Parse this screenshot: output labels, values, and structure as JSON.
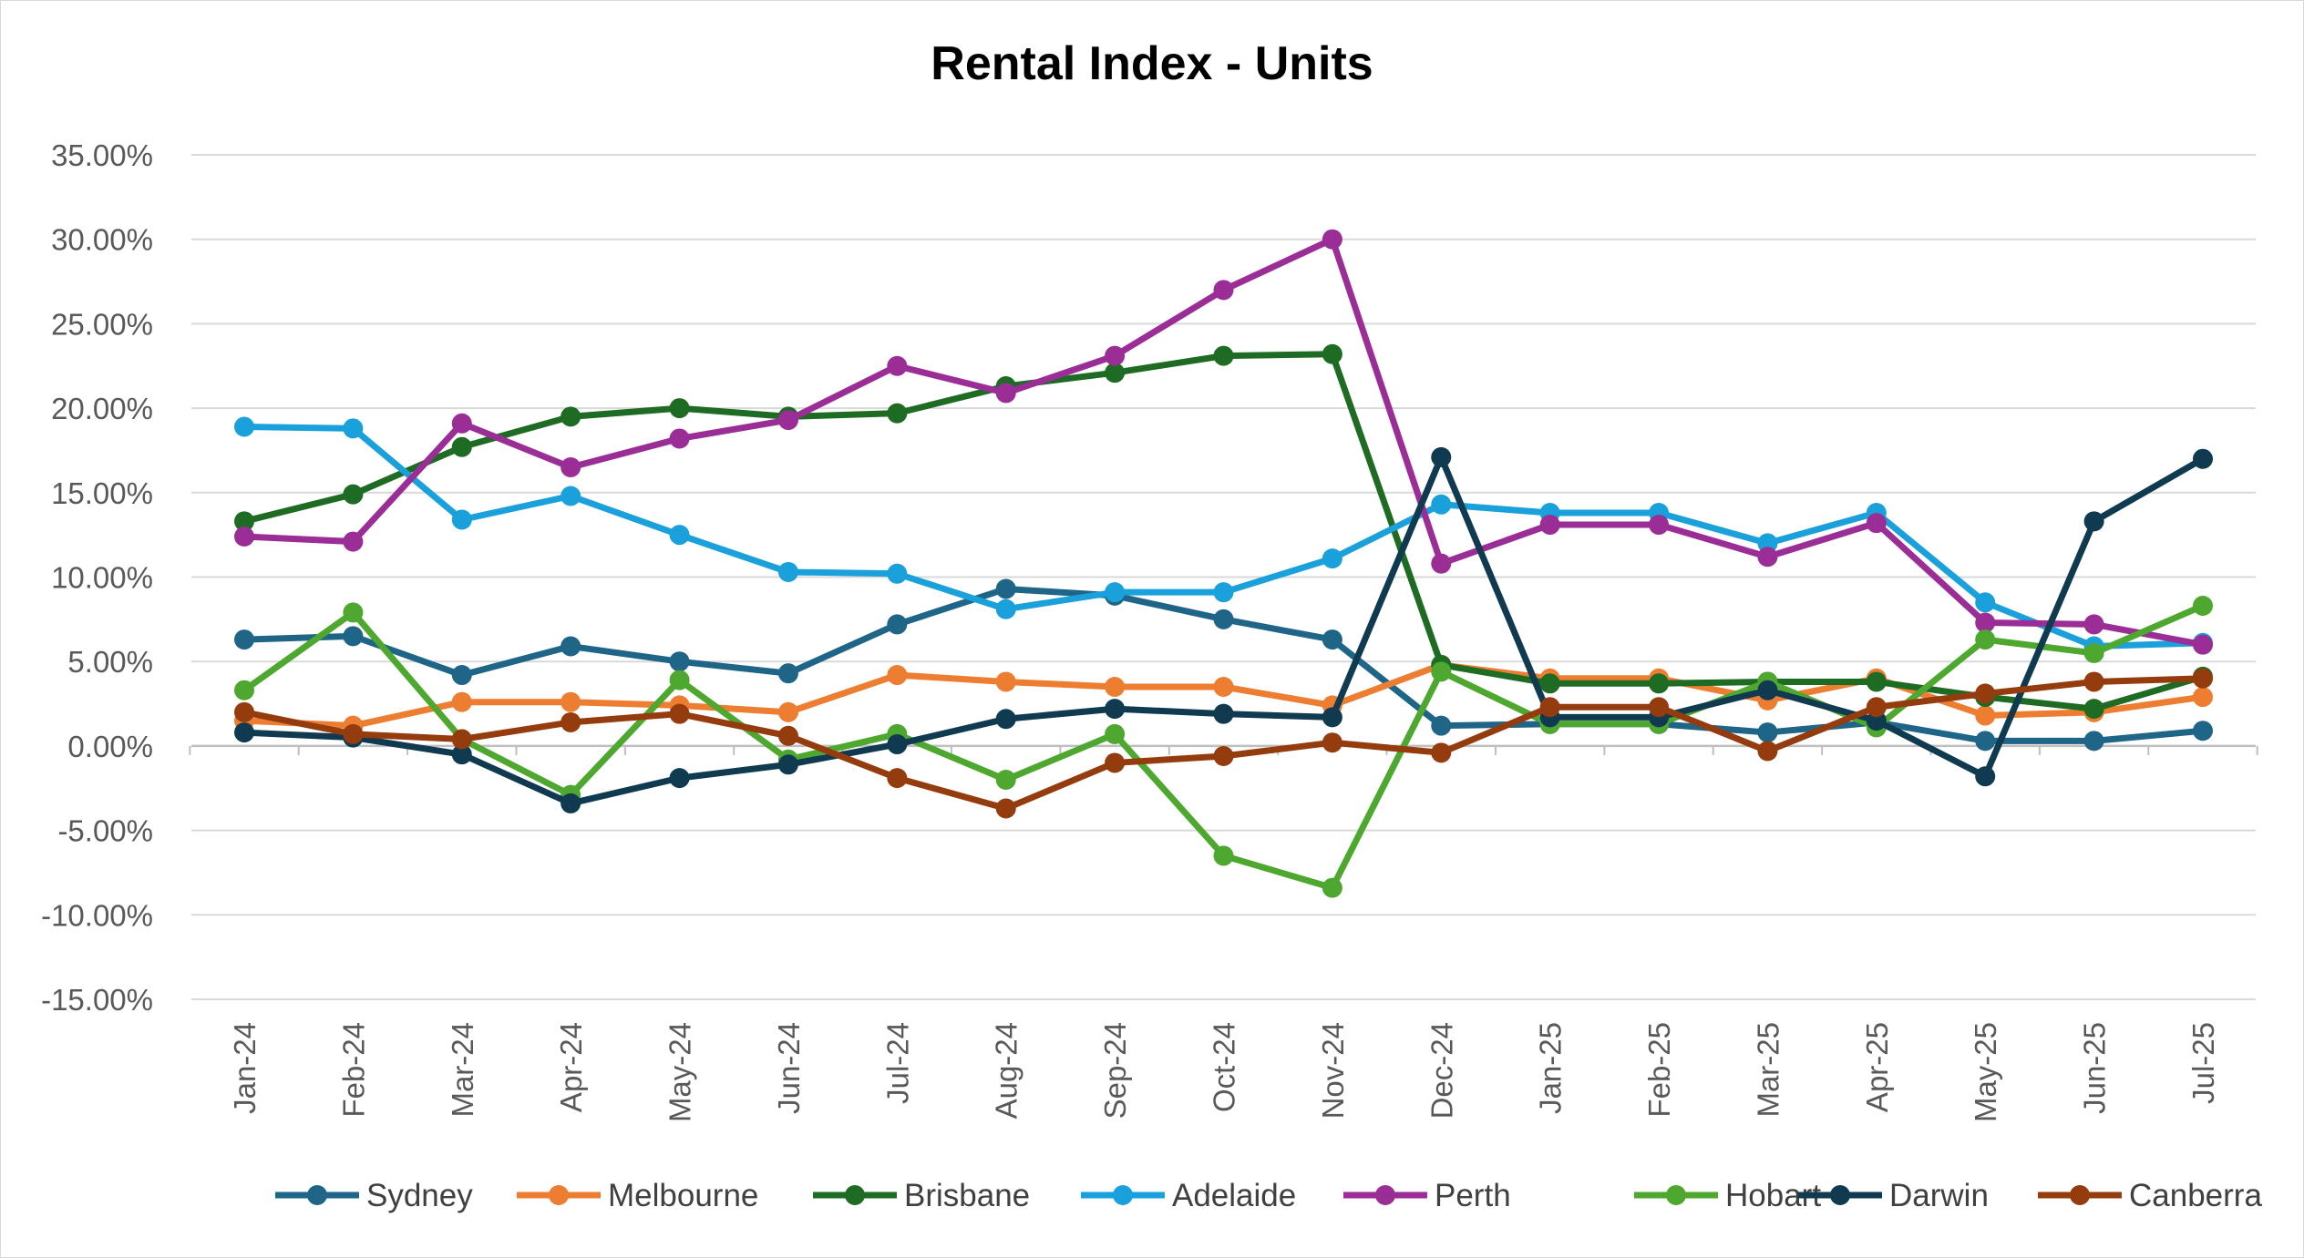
{
  "chart_data": {
    "type": "line",
    "title": "Rental Index - Units",
    "xlabel": "",
    "ylabel": "",
    "ylim": [
      -15,
      35
    ],
    "ytick_step": 5,
    "ytick_labels": [
      "35.00%",
      "30.00%",
      "25.00%",
      "20.00%",
      "15.00%",
      "10.00%",
      "5.00%",
      "0.00%",
      "-5.00%",
      "-10.00%",
      "-15.00%"
    ],
    "grid": "horizontal",
    "legend_position": "bottom",
    "categories": [
      "Jan-24",
      "Feb-24",
      "Mar-24",
      "Apr-24",
      "May-24",
      "Jun-24",
      "Jul-24",
      "Aug-24",
      "Sep-24",
      "Oct-24",
      "Nov-24",
      "Dec-24",
      "Jan-25",
      "Feb-25",
      "Mar-25",
      "Apr-25",
      "May-25",
      "Jun-25",
      "Jul-25"
    ],
    "series": [
      {
        "name": "Sydney",
        "color": "#1f6587",
        "values": [
          6.3,
          6.5,
          4.2,
          5.9,
          5.0,
          4.3,
          7.2,
          9.3,
          8.9,
          7.5,
          6.3,
          1.2,
          1.3,
          1.3,
          0.8,
          1.4,
          0.3,
          0.3,
          0.9
        ]
      },
      {
        "name": "Melbourne",
        "color": "#ed7d31",
        "values": [
          1.5,
          1.2,
          2.6,
          2.6,
          2.4,
          2.0,
          4.2,
          3.8,
          3.5,
          3.5,
          2.4,
          4.8,
          4.0,
          4.0,
          2.7,
          4.0,
          1.8,
          2.0,
          2.9
        ]
      },
      {
        "name": "Brisbane",
        "color": "#1e6b23",
        "values": [
          13.3,
          14.9,
          17.7,
          19.5,
          20.0,
          19.5,
          19.7,
          21.3,
          22.1,
          23.1,
          23.2,
          4.8,
          3.7,
          3.7,
          3.8,
          3.8,
          2.9,
          2.2,
          4.1
        ]
      },
      {
        "name": "Adelaide",
        "color": "#1aa0da",
        "values": [
          18.9,
          18.8,
          13.4,
          14.8,
          12.5,
          10.3,
          10.2,
          8.1,
          9.1,
          9.1,
          11.1,
          14.3,
          13.8,
          13.8,
          12.0,
          13.8,
          8.5,
          5.9,
          6.1
        ]
      },
      {
        "name": "Perth",
        "color": "#9b2d96",
        "values": [
          12.4,
          12.1,
          19.1,
          16.5,
          18.2,
          19.3,
          22.5,
          20.9,
          23.1,
          27.0,
          30.0,
          10.8,
          13.1,
          13.1,
          11.2,
          13.2,
          7.3,
          7.2,
          6.0
        ]
      },
      {
        "name": "Hobart",
        "color": "#4ea72e",
        "values": [
          3.3,
          7.9,
          0.4,
          -2.9,
          3.9,
          -0.8,
          0.7,
          -2.0,
          0.7,
          -6.5,
          -8.4,
          4.4,
          1.3,
          1.3,
          3.8,
          1.1,
          6.3,
          5.5,
          8.3
        ]
      },
      {
        "name": "Darwin",
        "color": "#0f3a50",
        "values": [
          0.8,
          0.5,
          -0.5,
          -3.4,
          -1.9,
          -1.1,
          0.1,
          1.6,
          2.2,
          1.9,
          1.7,
          17.1,
          1.7,
          1.7,
          3.3,
          1.5,
          -1.8,
          13.3,
          17.0
        ]
      },
      {
        "name": "Canberra",
        "color": "#953c0e",
        "values": [
          2.0,
          0.7,
          0.4,
          1.4,
          1.9,
          0.6,
          -1.9,
          -3.7,
          -1.0,
          -0.6,
          0.2,
          -0.4,
          2.3,
          2.3,
          -0.3,
          2.3,
          3.1,
          3.8,
          4.0
        ]
      }
    ]
  }
}
